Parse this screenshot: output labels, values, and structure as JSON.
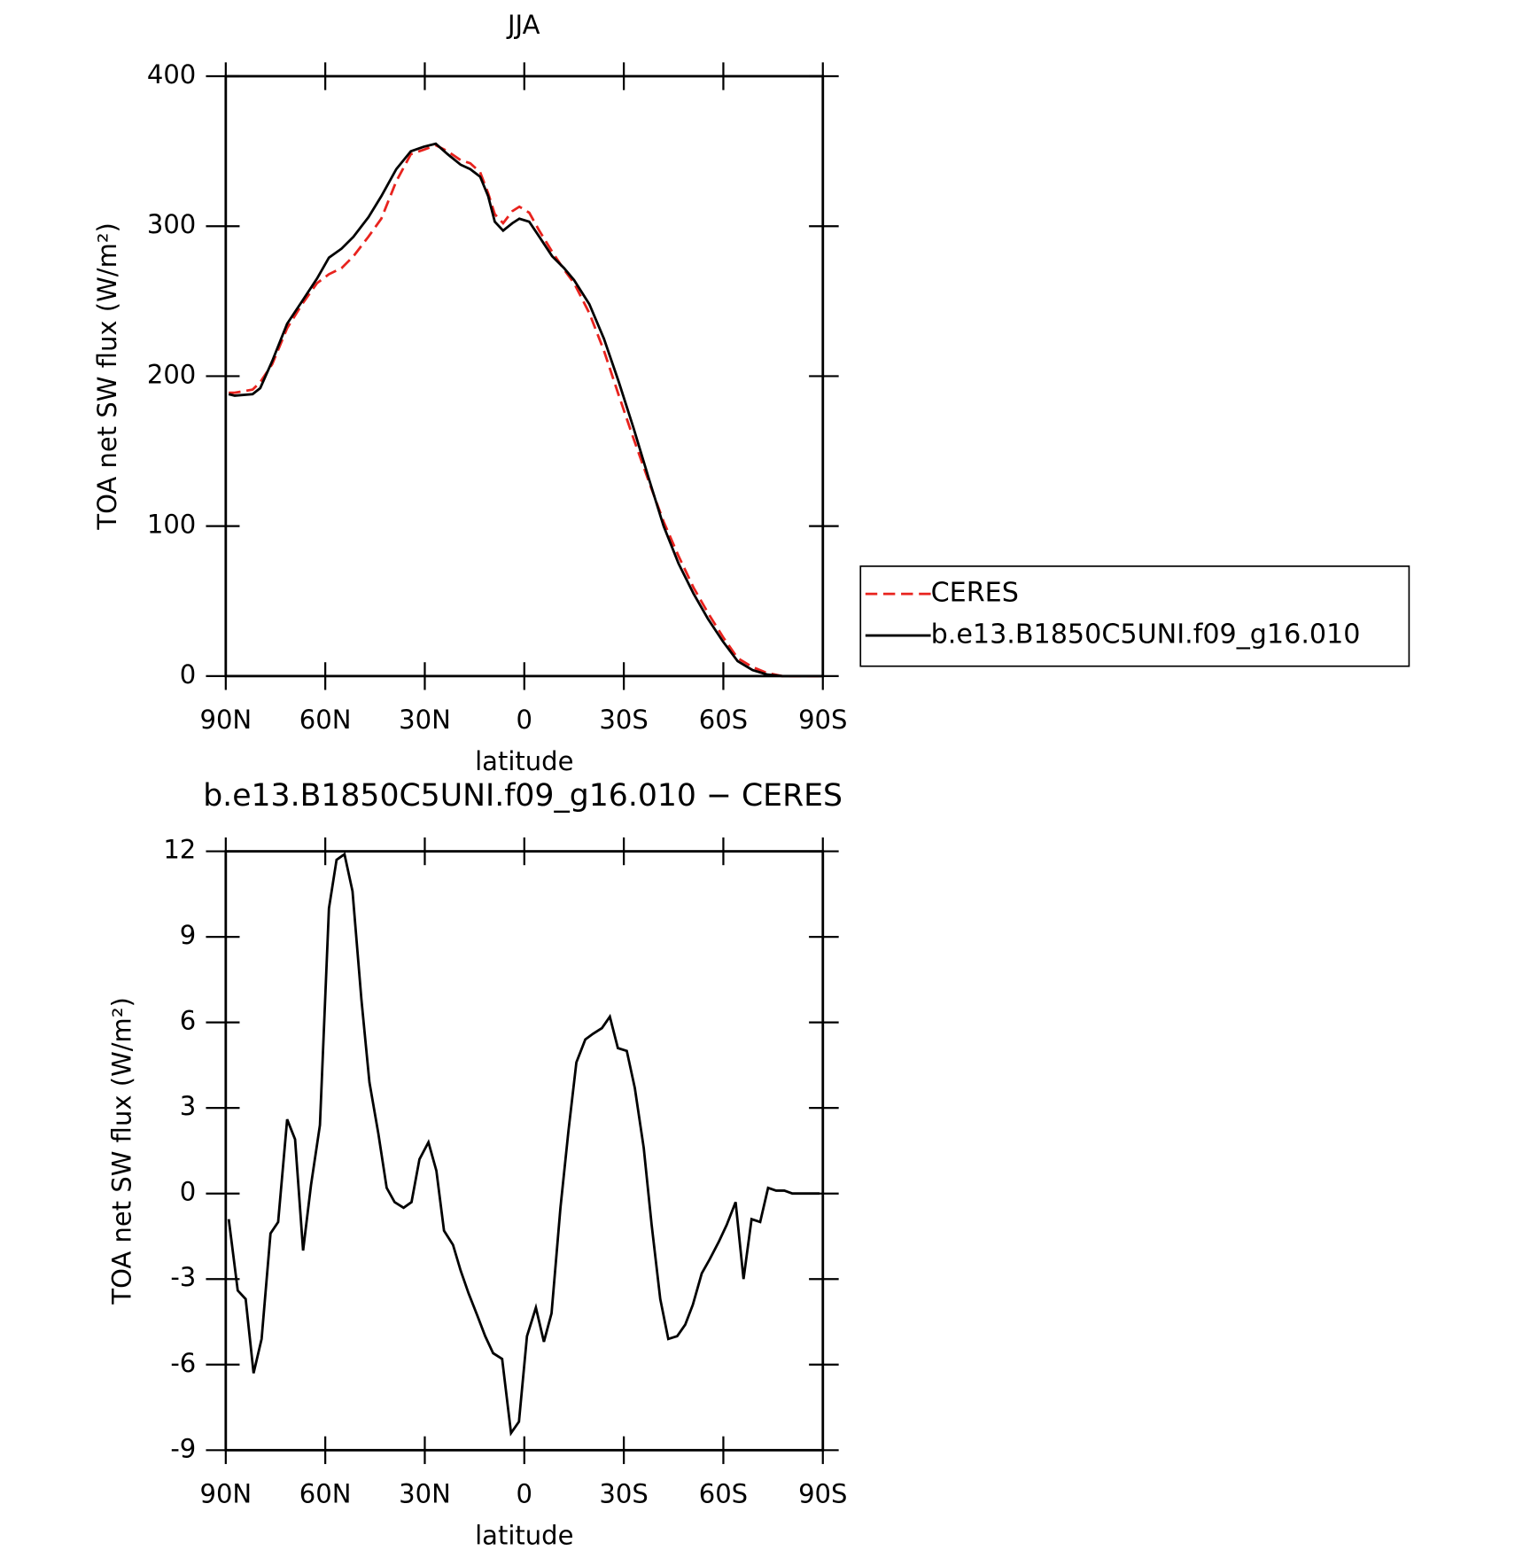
{
  "chart_data": [
    {
      "type": "line",
      "title": "JJA",
      "xlabel": "latitude",
      "ylabel": "TOA net SW flux (W/m²)",
      "x": [
        89.1,
        87.3,
        81.9,
        79.6,
        76.0,
        71.5,
        67.0,
        62.5,
        58.9,
        55.1,
        51.5,
        47.0,
        43.1,
        38.6,
        34.2,
        30.3,
        26.7,
        23.1,
        19.2,
        16.3,
        13.3,
        10.9,
        8.9,
        6.4,
        3.6,
        1.5,
        -1.5,
        -4.5,
        -8.4,
        -12.0,
        -15.0,
        -19.6,
        -24.0,
        -28.5,
        -33.0,
        -37.5,
        -42.0,
        -46.5,
        -51.0,
        -55.4,
        -59.9,
        -64.3,
        -68.8,
        -73.3,
        -77.8,
        -90
      ],
      "series": [
        {
          "name": "CERES",
          "color": "#e8231e",
          "linestyle": "dashed",
          "values": [
            189,
            189,
            191,
            196,
            208,
            232,
            248,
            262,
            268,
            272,
            280,
            293,
            305,
            330,
            348,
            351,
            354,
            350,
            344,
            342,
            336,
            322,
            308,
            302,
            310,
            313,
            309,
            297,
            283,
            271,
            262,
            242,
            217,
            187,
            158,
            130,
            103,
            80,
            59,
            42,
            26,
            12,
            6,
            2,
            0,
            0
          ]
        },
        {
          "name": "b.e13.B1850C5UNI.f09_g16.010",
          "color": "#000000",
          "linestyle": "solid",
          "values": [
            188,
            187,
            188,
            192,
            210,
            235,
            250,
            265,
            279,
            285,
            293,
            306,
            320,
            338,
            350,
            353,
            355,
            348,
            341,
            338,
            333,
            320,
            303,
            297,
            302,
            305,
            303,
            293,
            280,
            272,
            264,
            248,
            225,
            196,
            165,
            132,
            100,
            75,
            55,
            38,
            23,
            10,
            4,
            1,
            0,
            0
          ]
        }
      ],
      "xlim": [
        90,
        -90
      ],
      "xticks": [
        {
          "value": 90,
          "label": "90N"
        },
        {
          "value": 60,
          "label": "60N"
        },
        {
          "value": 30,
          "label": "30N"
        },
        0,
        {
          "value": -30,
          "label": "30S"
        },
        {
          "value": -60,
          "label": "60S"
        },
        {
          "value": -90,
          "label": "90S"
        }
      ],
      "ylim": [
        0,
        400
      ],
      "yticks": [
        0,
        100,
        200,
        300,
        400
      ],
      "legend": "right"
    },
    {
      "type": "line",
      "title": "b.e13.B1850C5UNI.f09_g16.010 − CERES",
      "xlabel": "latitude",
      "ylabel": "TOA net SW flux (W/m²)",
      "x": [
        89.1,
        86.4,
        84.0,
        81.6,
        79.2,
        76.5,
        74.2,
        71.5,
        69.1,
        66.7,
        64.3,
        61.6,
        58.9,
        56.6,
        54.2,
        51.8,
        49.1,
        46.7,
        44.0,
        41.5,
        39.1,
        36.4,
        34.0,
        31.6,
        28.9,
        26.5,
        24.2,
        21.5,
        19.2,
        16.8,
        14.1,
        11.8,
        9.4,
        6.7,
        4.0,
        1.6,
        -0.8,
        -3.5,
        -5.9,
        -8.2,
        -10.9,
        -13.3,
        -15.7,
        -18.4,
        -20.7,
        -23.4,
        -25.8,
        -28.2,
        -30.9,
        -33.3,
        -36.0,
        -38.4,
        -41.0,
        -43.4,
        -46.1,
        -48.5,
        -50.8,
        -53.5,
        -55.9,
        -58.6,
        -61.0,
        -63.7,
        -66.1,
        -68.5,
        -71.1,
        -73.5,
        -75.9,
        -78.4,
        -80.8,
        -85.8,
        -89
      ],
      "values": [
        -0.9,
        -3.4,
        -3.7,
        -6.3,
        -5.1,
        -1.4,
        -1.0,
        2.6,
        1.9,
        -2.0,
        0.3,
        2.4,
        10.0,
        11.7,
        11.9,
        10.6,
        6.8,
        3.9,
        2.1,
        0.2,
        -0.3,
        -0.5,
        -0.3,
        1.2,
        1.8,
        0.8,
        -1.3,
        -1.8,
        -2.7,
        -3.5,
        -4.3,
        -5.0,
        -5.6,
        -5.8,
        -8.4,
        -8.0,
        -5.0,
        -4.0,
        -5.2,
        -4.2,
        -0.5,
        2.2,
        4.6,
        5.4,
        5.6,
        5.8,
        6.2,
        5.1,
        5.0,
        3.7,
        1.6,
        -1.1,
        -3.7,
        -5.1,
        -5.0,
        -4.6,
        -3.9,
        -2.8,
        -2.3,
        -1.7,
        -1.1,
        -0.3,
        -3.0,
        -0.9,
        -1.0,
        0.2,
        0.1,
        0.1,
        0.0,
        0.0,
        0.0
      ],
      "color": "#000000",
      "xlim": [
        90,
        -90
      ],
      "xticks": [
        {
          "value": 90,
          "label": "90N"
        },
        {
          "value": 60,
          "label": "60N"
        },
        {
          "value": 30,
          "label": "30N"
        },
        0,
        {
          "value": -30,
          "label": "30S"
        },
        {
          "value": -60,
          "label": "60S"
        },
        {
          "value": -90,
          "label": "90S"
        }
      ],
      "ylim": [
        -9,
        12
      ],
      "yticks": [
        -9,
        -6,
        -3,
        0,
        3,
        6,
        9,
        12
      ]
    }
  ]
}
